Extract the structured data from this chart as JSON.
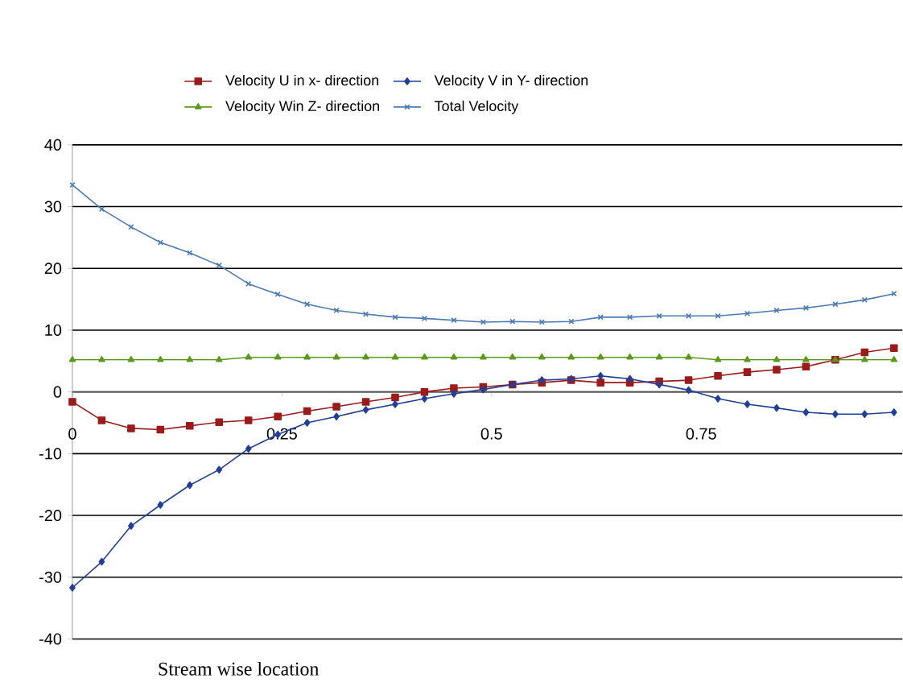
{
  "chart_data": {
    "type": "line",
    "xlabel": "Stream wise location",
    "x": [
      0,
      0.035,
      0.07,
      0.105,
      0.14,
      0.175,
      0.21,
      0.245,
      0.28,
      0.315,
      0.35,
      0.385,
      0.42,
      0.455,
      0.49,
      0.525,
      0.56,
      0.595,
      0.63,
      0.665,
      0.7,
      0.735,
      0.77,
      0.805,
      0.84,
      0.875,
      0.91,
      0.945,
      0.98
    ],
    "series": [
      {
        "name": "Velocity U in x- direction",
        "color": "#9b1b1b",
        "marker": "square",
        "values": [
          -1.6,
          -4.6,
          -5.9,
          -6.1,
          -5.5,
          -4.9,
          -4.6,
          -4.0,
          -3.1,
          -2.4,
          -1.6,
          -0.9,
          0,
          0.6,
          0.8,
          1.2,
          1.5,
          1.9,
          1.5,
          1.5,
          1.7,
          1.9,
          2.6,
          3.2,
          3.6,
          4.1,
          5.2,
          6.4,
          7.1
        ]
      },
      {
        "name": "Velocity V in Y- direction",
        "color": "#1f3f99",
        "marker": "diamond",
        "values": [
          -31.7,
          -27.5,
          -21.7,
          -18.3,
          -15.1,
          -12.6,
          -9.2,
          -6.9,
          -5.0,
          -4.0,
          -2.9,
          -2.0,
          -1.1,
          -0.3,
          0.4,
          1.2,
          1.9,
          2.1,
          2.6,
          2.1,
          1.2,
          0.3,
          -1.1,
          -2.0,
          -2.6,
          -3.3,
          -3.6,
          -3.6,
          -3.3
        ]
      },
      {
        "name": "Velocity Win Z- direction",
        "color": "#5a9a1a",
        "marker": "triangle",
        "values": [
          5.2,
          5.2,
          5.2,
          5.2,
          5.2,
          5.2,
          5.6,
          5.6,
          5.6,
          5.6,
          5.6,
          5.6,
          5.6,
          5.6,
          5.6,
          5.6,
          5.6,
          5.6,
          5.6,
          5.6,
          5.6,
          5.6,
          5.2,
          5.2,
          5.2,
          5.2,
          5.2,
          5.2,
          5.2
        ]
      },
      {
        "name": "Total Velocity",
        "color": "#4a7ab5",
        "marker": "cross",
        "values": [
          33.5,
          29.6,
          26.7,
          24.2,
          22.5,
          20.5,
          17.5,
          15.8,
          14.2,
          13.2,
          12.6,
          12.1,
          11.9,
          11.6,
          11.3,
          11.4,
          11.3,
          11.4,
          12.1,
          12.1,
          12.3,
          12.3,
          12.3,
          12.7,
          13.2,
          13.6,
          14.2,
          14.9,
          15.9
        ]
      }
    ],
    "xlim": [
      0,
      0.99
    ],
    "ylim": [
      -40,
      40
    ],
    "xticks": [
      0,
      0.25,
      0.5,
      0.75
    ],
    "yticks": [
      -40,
      -30,
      -20,
      -10,
      0,
      10,
      20,
      30,
      40
    ],
    "grid": "y",
    "legend": "top"
  }
}
